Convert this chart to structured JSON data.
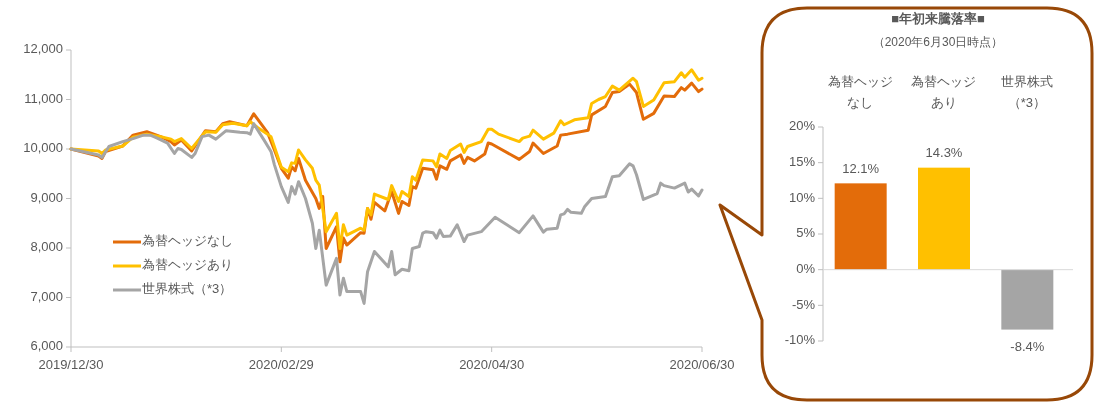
{
  "chart_data": [
    {
      "type": "line",
      "xlim": [
        "2019-12-30",
        "2020-06-30"
      ],
      "xticks": [
        {
          "value": "2019-12-30",
          "label": "2019/12/30"
        },
        {
          "value": "2020-02-29",
          "label": "2020/02/29"
        },
        {
          "value": "2020-04-30",
          "label": "2020/04/30"
        },
        {
          "value": "2020-06-30",
          "label": "2020/06/30"
        }
      ],
      "ylim": [
        6000,
        12000
      ],
      "yticks": [
        {
          "value": 6000,
          "label": "6,000"
        },
        {
          "value": 7000,
          "label": "7,000"
        },
        {
          "value": 8000,
          "label": "8,000"
        },
        {
          "value": 9000,
          "label": "9,000"
        },
        {
          "value": 10000,
          "label": "10,000"
        },
        {
          "value": 11000,
          "label": "11,000"
        },
        {
          "value": 12000,
          "label": "12,000"
        }
      ],
      "grid": false,
      "legend": "bottom left",
      "marker": "none",
      "line_style": "solid",
      "series": [
        {
          "name": "為替ヘッジなし",
          "color": "#e36c0a",
          "x": [
            "2019-12-30",
            "2020-01-07",
            "2020-01-08",
            "2020-01-09",
            "2020-01-14",
            "2020-01-17",
            "2020-01-21",
            "2020-01-25",
            "2020-01-28",
            "2020-01-29",
            "2020-01-31",
            "2020-02-03",
            "2020-02-07",
            "2020-02-10",
            "2020-02-12",
            "2020-02-14",
            "2020-02-19",
            "2020-02-21",
            "2020-02-25",
            "2020-02-27",
            "2020-02-29",
            "2020-03-02",
            "2020-03-03",
            "2020-03-04",
            "2020-03-05",
            "2020-03-07",
            "2020-03-10",
            "2020-03-11",
            "2020-03-12",
            "2020-03-13",
            "2020-03-16",
            "2020-03-17",
            "2020-03-18",
            "2020-03-19",
            "2020-03-23",
            "2020-03-24",
            "2020-03-25",
            "2020-03-26",
            "2020-03-27",
            "2020-03-30",
            "2020-04-01",
            "2020-04-03",
            "2020-04-04",
            "2020-04-06",
            "2020-04-07",
            "2020-04-08",
            "2020-04-10",
            "2020-04-13",
            "2020-04-14",
            "2020-04-15",
            "2020-04-17",
            "2020-04-18",
            "2020-04-21",
            "2020-04-22",
            "2020-04-23",
            "2020-04-25",
            "2020-04-28",
            "2020-04-29",
            "2020-04-30",
            "2020-05-08",
            "2020-05-11",
            "2020-05-12",
            "2020-05-15",
            "2020-05-19",
            "2020-05-20",
            "2020-05-22",
            "2020-05-28",
            "2020-05-29",
            "2020-06-02",
            "2020-06-04",
            "2020-06-06",
            "2020-06-09",
            "2020-06-11",
            "2020-06-13",
            "2020-06-16",
            "2020-06-19",
            "2020-06-22",
            "2020-06-24",
            "2020-06-25",
            "2020-06-27",
            "2020-06-29",
            "2020-06-30"
          ],
          "values": [
            10000,
            9860,
            9810,
            9950,
            10060,
            10280,
            10350,
            10250,
            10150,
            10080,
            10180,
            9960,
            10370,
            10350,
            10510,
            10550,
            10470,
            10710,
            10330,
            9980,
            9610,
            9410,
            9640,
            9560,
            9810,
            9370,
            9000,
            8800,
            9040,
            7990,
            8430,
            7720,
            8200,
            8060,
            8310,
            8300,
            8800,
            8580,
            8920,
            8750,
            9140,
            8700,
            8940,
            8860,
            9240,
            9210,
            9610,
            9580,
            9390,
            9660,
            9590,
            9760,
            9880,
            9710,
            9830,
            9760,
            9900,
            10120,
            10100,
            9790,
            9950,
            10120,
            9910,
            10060,
            10280,
            10300,
            10380,
            10690,
            10860,
            11140,
            11160,
            11310,
            11140,
            10600,
            10720,
            11070,
            11060,
            11240,
            11190,
            11330,
            11160,
            11210
          ]
        },
        {
          "name": "為替ヘッジあり",
          "color": "#ffc000",
          "x": [
            "2019-12-30",
            "2020-01-07",
            "2020-01-08",
            "2020-01-09",
            "2020-01-14",
            "2020-01-17",
            "2020-01-21",
            "2020-01-25",
            "2020-01-28",
            "2020-01-29",
            "2020-01-31",
            "2020-02-03",
            "2020-02-07",
            "2020-02-10",
            "2020-02-12",
            "2020-02-15",
            "2020-02-19",
            "2020-02-20",
            "2020-02-22",
            "2020-02-26",
            "2020-02-29",
            "2020-03-02",
            "2020-03-03",
            "2020-03-04",
            "2020-03-05",
            "2020-03-07",
            "2020-03-09",
            "2020-03-10",
            "2020-03-11",
            "2020-03-13",
            "2020-03-16",
            "2020-03-17",
            "2020-03-18",
            "2020-03-19",
            "2020-03-23",
            "2020-03-24",
            "2020-03-25",
            "2020-03-26",
            "2020-03-27",
            "2020-03-31",
            "2020-04-01",
            "2020-04-03",
            "2020-04-04",
            "2020-04-06",
            "2020-04-07",
            "2020-04-08",
            "2020-04-10",
            "2020-04-13",
            "2020-04-14",
            "2020-04-15",
            "2020-04-17",
            "2020-04-18",
            "2020-04-21",
            "2020-04-22",
            "2020-04-23",
            "2020-04-27",
            "2020-04-29",
            "2020-04-30",
            "2020-05-02",
            "2020-05-08",
            "2020-05-09",
            "2020-05-11",
            "2020-05-12",
            "2020-05-15",
            "2020-05-18",
            "2020-05-20",
            "2020-05-21",
            "2020-05-24",
            "2020-05-28",
            "2020-05-29",
            "2020-05-31",
            "2020-06-02",
            "2020-06-04",
            "2020-06-06",
            "2020-06-08",
            "2020-06-10",
            "2020-06-11",
            "2020-06-13",
            "2020-06-16",
            "2020-06-19",
            "2020-06-22",
            "2020-06-24",
            "2020-06-25",
            "2020-06-27",
            "2020-06-29",
            "2020-06-30"
          ],
          "values": [
            10000,
            9960,
            9910,
            9980,
            10060,
            10240,
            10300,
            10250,
            10200,
            10150,
            10210,
            10010,
            10350,
            10340,
            10490,
            10520,
            10470,
            10550,
            10440,
            10250,
            9630,
            9540,
            9720,
            9710,
            9980,
            9780,
            9610,
            9370,
            9270,
            8330,
            8700,
            7990,
            8470,
            8260,
            8400,
            8360,
            8800,
            8670,
            9090,
            8980,
            9260,
            8940,
            9140,
            9040,
            9440,
            9370,
            9780,
            9760,
            9640,
            9900,
            9810,
            9970,
            10100,
            9930,
            10050,
            10150,
            10400,
            10400,
            10300,
            10150,
            10220,
            10260,
            10380,
            10200,
            10320,
            10570,
            10490,
            10590,
            10630,
            10920,
            11000,
            11060,
            11270,
            11190,
            11310,
            11430,
            11360,
            10860,
            10990,
            11340,
            11360,
            11540,
            11450,
            11600,
            11390,
            11430
          ]
        },
        {
          "name": "世界株式（*3）",
          "color": "#a5a5a5",
          "x": [
            "2019-12-30",
            "2020-01-07",
            "2020-01-08",
            "2020-01-10",
            "2020-01-14",
            "2020-01-17",
            "2020-01-20",
            "2020-01-22",
            "2020-01-24",
            "2020-01-27",
            "2020-01-29",
            "2020-01-30",
            "2020-01-31",
            "2020-02-03",
            "2020-02-04",
            "2020-02-06",
            "2020-02-08",
            "2020-02-10",
            "2020-02-13",
            "2020-02-17",
            "2020-02-19",
            "2020-02-20",
            "2020-02-21",
            "2020-02-24",
            "2020-02-26",
            "2020-02-27",
            "2020-02-29",
            "2020-03-02",
            "2020-03-03",
            "2020-03-04",
            "2020-03-05",
            "2020-03-07",
            "2020-03-09",
            "2020-03-10",
            "2020-03-11",
            "2020-03-13",
            "2020-03-16",
            "2020-03-17",
            "2020-03-18",
            "2020-03-19",
            "2020-03-23",
            "2020-03-24",
            "2020-03-25",
            "2020-03-27",
            "2020-03-31",
            "2020-04-01",
            "2020-04-02",
            "2020-04-04",
            "2020-04-06",
            "2020-04-07",
            "2020-04-09",
            "2020-04-10",
            "2020-04-11",
            "2020-04-13",
            "2020-04-14",
            "2020-04-15",
            "2020-04-16",
            "2020-04-18",
            "2020-04-20",
            "2020-04-22",
            "2020-04-23",
            "2020-04-27",
            "2020-05-01",
            "2020-05-08",
            "2020-05-12",
            "2020-05-15",
            "2020-05-16",
            "2020-05-19",
            "2020-05-20",
            "2020-05-21",
            "2020-05-22",
            "2020-05-23",
            "2020-05-26",
            "2020-05-27",
            "2020-05-29",
            "2020-06-02",
            "2020-06-04",
            "2020-06-06",
            "2020-06-09",
            "2020-06-10",
            "2020-06-11",
            "2020-06-13",
            "2020-06-17",
            "2020-06-18",
            "2020-06-19",
            "2020-06-22",
            "2020-06-25",
            "2020-06-26",
            "2020-06-27",
            "2020-06-29",
            "2020-06-30"
          ],
          "values": [
            10000,
            9880,
            9830,
            10050,
            10150,
            10210,
            10280,
            10280,
            10220,
            10120,
            9910,
            10010,
            9990,
            9830,
            9910,
            10250,
            10280,
            10200,
            10370,
            10340,
            10330,
            10300,
            10510,
            10180,
            9950,
            9680,
            9240,
            8920,
            9240,
            9090,
            9340,
            9000,
            8500,
            7990,
            8360,
            7250,
            7790,
            7050,
            7390,
            7120,
            7120,
            6880,
            7520,
            7930,
            7620,
            7930,
            7460,
            7570,
            7540,
            7990,
            8030,
            8300,
            8330,
            8310,
            8200,
            8360,
            8230,
            8240,
            8470,
            8130,
            8260,
            8330,
            8620,
            8310,
            8650,
            8320,
            8380,
            8400,
            8670,
            8690,
            8780,
            8720,
            8700,
            8840,
            9000,
            9040,
            9440,
            9460,
            9700,
            9660,
            9480,
            8980,
            9100,
            9310,
            9260,
            9210,
            9310,
            9130,
            9190,
            9050,
            9170
          ]
        }
      ]
    },
    {
      "type": "bar",
      "title": "■年初来騰落率■",
      "subtitle": "（2020年6月30日時点）",
      "categories": [
        "為替ヘッジなし",
        "為替ヘッジあり",
        "世界株式（*3）"
      ],
      "values": [
        12.1,
        14.3,
        -8.4
      ],
      "colors": [
        "#e36c0a",
        "#ffc000",
        "#a5a5a5"
      ],
      "value_labels": [
        "12.1%",
        "14.3%",
        "-8.4%"
      ],
      "ylim": [
        -10,
        20
      ],
      "yticks": [
        {
          "value": -10,
          "label": "-10%"
        },
        {
          "value": -5,
          "label": "-5%"
        },
        {
          "value": 0,
          "label": "0%"
        },
        {
          "value": 5,
          "label": "5%"
        },
        {
          "value": 10,
          "label": "10%"
        },
        {
          "value": 15,
          "label": "15%"
        },
        {
          "value": 20,
          "label": "20%"
        }
      ]
    }
  ]
}
